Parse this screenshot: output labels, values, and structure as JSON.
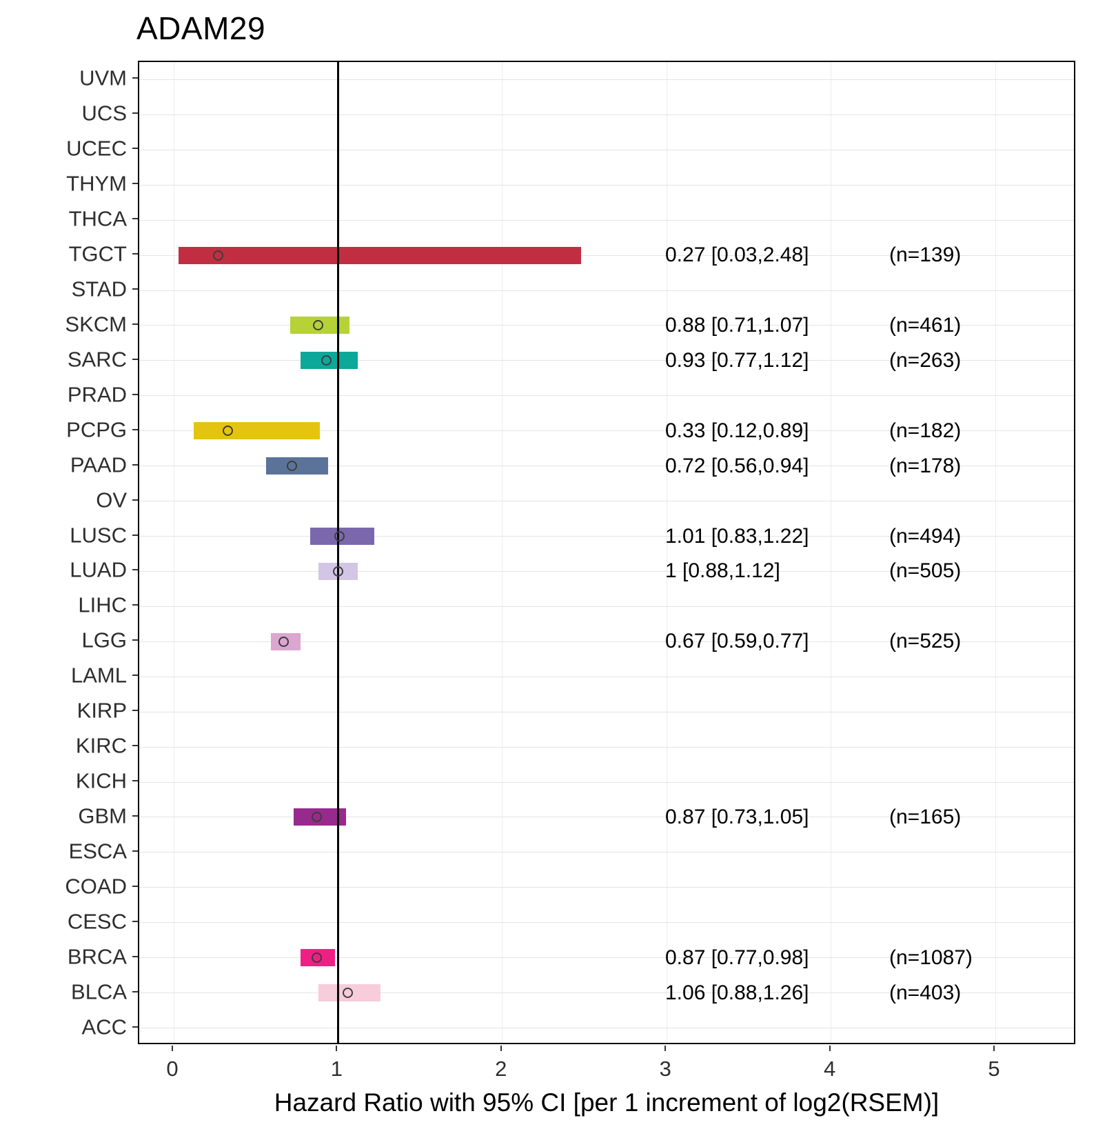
{
  "title": "ADAM29",
  "chart_data": {
    "type": "forest",
    "title": "ADAM29",
    "xlabel": "Hazard Ratio with 95% CI [per 1 increment of log2(RSEM)]",
    "x_ticks": [
      0,
      1,
      2,
      3,
      4,
      5
    ],
    "xlim": [
      -0.21,
      5.24
    ],
    "reference_line_x": 1,
    "legend": "none",
    "grid": "on",
    "categories": [
      "UVM",
      "UCS",
      "UCEC",
      "THYM",
      "THCA",
      "TGCT",
      "STAD",
      "SKCM",
      "SARC",
      "PRAD",
      "PCPG",
      "PAAD",
      "OV",
      "LUSC",
      "LUAD",
      "LIHC",
      "LGG",
      "LAML",
      "KIRP",
      "KIRC",
      "KICH",
      "GBM",
      "ESCA",
      "COAD",
      "CESC",
      "BRCA",
      "BLCA",
      "ACC"
    ],
    "rows": [
      {
        "category": "TGCT",
        "hr": 0.27,
        "ci_low": 0.03,
        "ci_high": 2.48,
        "n": 139,
        "hr_label": "0.27 [0.03,2.48]",
        "n_label": "(n=139)",
        "color": "#C22E41"
      },
      {
        "category": "SKCM",
        "hr": 0.88,
        "ci_low": 0.71,
        "ci_high": 1.07,
        "n": 461,
        "hr_label": "0.88 [0.71,1.07]",
        "n_label": "(n=461)",
        "color": "#B5D336"
      },
      {
        "category": "SARC",
        "hr": 0.93,
        "ci_low": 0.77,
        "ci_high": 1.12,
        "n": 263,
        "hr_label": "0.93 [0.77,1.12]",
        "n_label": "(n=263)",
        "color": "#0CA89A"
      },
      {
        "category": "PCPG",
        "hr": 0.33,
        "ci_low": 0.12,
        "ci_high": 0.89,
        "n": 182,
        "hr_label": "0.33 [0.12,0.89]",
        "n_label": "(n=182)",
        "color": "#E4C411"
      },
      {
        "category": "PAAD",
        "hr": 0.72,
        "ci_low": 0.56,
        "ci_high": 0.94,
        "n": 178,
        "hr_label": "0.72 [0.56,0.94]",
        "n_label": "(n=178)",
        "color": "#5C7399"
      },
      {
        "category": "LUSC",
        "hr": 1.01,
        "ci_low": 0.83,
        "ci_high": 1.22,
        "n": 494,
        "hr_label": "1.01 [0.83,1.22]",
        "n_label": "(n=494)",
        "color": "#7B68AC"
      },
      {
        "category": "LUAD",
        "hr": 1.0,
        "ci_low": 0.88,
        "ci_high": 1.12,
        "n": 505,
        "hr_label": "1 [0.88,1.12]",
        "n_label": "(n=505)",
        "color": "#D3C5E5"
      },
      {
        "category": "LGG",
        "hr": 0.67,
        "ci_low": 0.59,
        "ci_high": 0.77,
        "n": 525,
        "hr_label": "0.67 [0.59,0.77]",
        "n_label": "(n=525)",
        "color": "#DBA6D0"
      },
      {
        "category": "GBM",
        "hr": 0.87,
        "ci_low": 0.73,
        "ci_high": 1.05,
        "n": 165,
        "hr_label": "0.87 [0.73,1.05]",
        "n_label": "(n=165)",
        "color": "#982A8E"
      },
      {
        "category": "BRCA",
        "hr": 0.87,
        "ci_low": 0.77,
        "ci_high": 0.98,
        "n": 1087,
        "hr_label": "0.87 [0.77,0.98]",
        "n_label": "(n=1087)",
        "color": "#EF1F84"
      },
      {
        "category": "BLCA",
        "hr": 1.06,
        "ci_low": 0.88,
        "ci_high": 1.26,
        "n": 403,
        "hr_label": "1.06 [0.88,1.26]",
        "n_label": "(n=403)",
        "color": "#F7CCDB"
      }
    ],
    "styles": {
      "reference_line_color": "#000000",
      "grid_color": "#E4E4E4",
      "axis_text_color": "#2e2e2e",
      "point_outline_color": "#3d3d3d",
      "panel_border_color": "#000000"
    }
  }
}
